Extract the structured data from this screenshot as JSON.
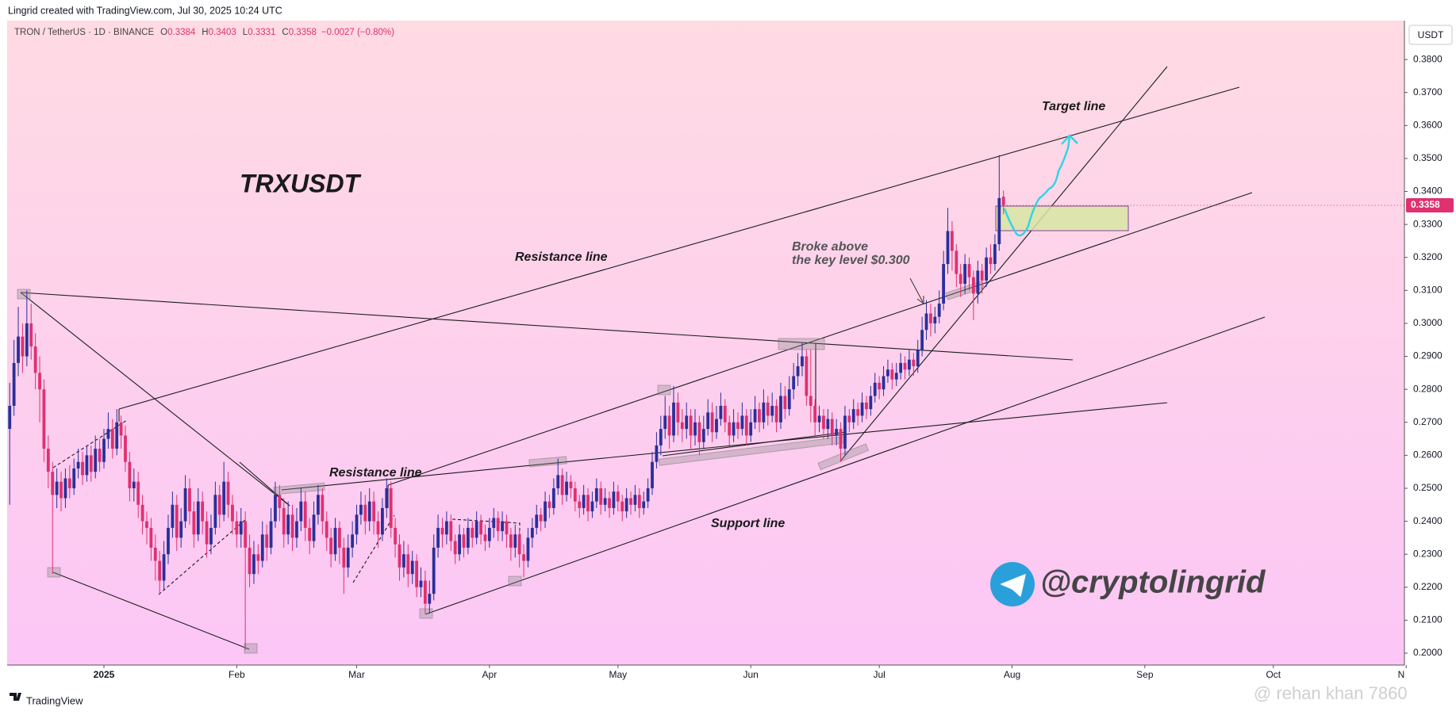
{
  "header": "Lingrid created with TradingView.com, Jul 30, 2025 10:24 UTC",
  "footer": "TradingView",
  "watermark": "@ rehan khan 7860",
  "chart_data": {
    "type": "candlestick",
    "legend": {
      "symbol": "TRON / TetherUS · 1D · BINANCE",
      "fields": [
        "O",
        "H",
        "L",
        "C"
      ],
      "change": "−0.0027 (−0.80%)"
    },
    "currency": "USDT",
    "up_color": "#2a2f9a",
    "down_color": "#e0306f",
    "open": [
      0.268,
      0.275,
      0.288,
      0.296,
      0.29,
      0.3,
      0.293,
      0.285,
      0.28,
      0.262,
      0.255,
      0.248,
      0.252,
      0.247,
      0.253,
      0.25,
      0.256,
      0.258,
      0.254,
      0.26,
      0.255,
      0.262,
      0.258,
      0.265,
      0.268,
      0.262,
      0.27,
      0.266,
      0.258,
      0.25,
      0.252,
      0.245,
      0.24,
      0.238,
      0.232,
      0.228,
      0.222,
      0.23,
      0.238,
      0.245,
      0.235,
      0.24,
      0.25,
      0.243,
      0.236,
      0.246,
      0.24,
      0.233,
      0.238,
      0.248,
      0.242,
      0.252,
      0.245,
      0.24,
      0.236,
      0.24,
      0.232,
      0.224,
      0.23,
      0.228,
      0.236,
      0.232,
      0.24,
      0.248,
      0.244,
      0.236,
      0.242,
      0.235,
      0.24,
      0.246,
      0.238,
      0.234,
      0.242,
      0.248,
      0.24,
      0.235,
      0.23,
      0.238,
      0.232,
      0.226,
      0.232,
      0.236,
      0.242,
      0.245,
      0.24,
      0.246,
      0.24,
      0.236,
      0.244,
      0.25,
      0.238,
      0.233,
      0.226,
      0.23,
      0.224,
      0.228,
      0.22,
      0.222,
      0.215,
      0.218,
      0.232,
      0.238,
      0.236,
      0.24,
      0.234,
      0.23,
      0.236,
      0.232,
      0.238,
      0.235,
      0.24,
      0.236,
      0.234,
      0.238,
      0.241,
      0.237,
      0.24,
      0.236,
      0.232,
      0.236,
      0.23,
      0.228,
      0.235,
      0.238,
      0.242,
      0.24,
      0.246,
      0.244,
      0.25,
      0.254,
      0.248,
      0.252,
      0.25,
      0.246,
      0.244,
      0.248,
      0.243,
      0.246,
      0.25,
      0.245,
      0.247,
      0.244,
      0.249,
      0.246,
      0.243,
      0.247,
      0.245,
      0.248,
      0.244,
      0.246,
      0.25,
      0.258,
      0.263,
      0.268,
      0.272,
      0.266,
      0.276,
      0.27,
      0.268,
      0.272,
      0.266,
      0.27,
      0.264,
      0.268,
      0.273,
      0.267,
      0.271,
      0.275,
      0.27,
      0.266,
      0.27,
      0.268,
      0.272,
      0.266,
      0.27,
      0.274,
      0.27,
      0.276,
      0.272,
      0.275,
      0.27,
      0.278,
      0.274,
      0.28,
      0.284,
      0.287,
      0.29,
      0.278,
      0.275,
      0.27,
      0.272,
      0.268,
      0.271,
      0.266,
      0.268,
      0.262,
      0.272,
      0.27,
      0.274,
      0.272,
      0.276,
      0.274,
      0.278,
      0.282,
      0.28,
      0.284,
      0.286,
      0.283,
      0.285,
      0.288,
      0.286,
      0.289,
      0.287,
      0.292,
      0.298,
      0.303,
      0.3,
      0.302,
      0.306,
      0.318,
      0.328,
      0.322,
      0.315,
      0.312,
      0.318,
      0.314,
      0.309,
      0.316,
      0.313,
      0.32,
      0.318,
      0.324,
      0.3384
    ],
    "high": [
      0.282,
      0.295,
      0.305,
      0.3,
      0.31,
      0.306,
      0.297,
      0.29,
      0.283,
      0.266,
      0.258,
      0.256,
      0.255,
      0.256,
      0.257,
      0.259,
      0.262,
      0.261,
      0.263,
      0.263,
      0.266,
      0.265,
      0.268,
      0.273,
      0.271,
      0.274,
      0.272,
      0.269,
      0.261,
      0.256,
      0.255,
      0.248,
      0.243,
      0.241,
      0.236,
      0.231,
      0.234,
      0.242,
      0.249,
      0.248,
      0.244,
      0.254,
      0.253,
      0.246,
      0.25,
      0.249,
      0.243,
      0.242,
      0.252,
      0.251,
      0.258,
      0.255,
      0.248,
      0.243,
      0.244,
      0.243,
      0.236,
      0.234,
      0.233,
      0.24,
      0.239,
      0.244,
      0.252,
      0.251,
      0.247,
      0.246,
      0.245,
      0.244,
      0.25,
      0.249,
      0.241,
      0.246,
      0.251,
      0.25,
      0.243,
      0.238,
      0.241,
      0.24,
      0.235,
      0.236,
      0.24,
      0.245,
      0.249,
      0.248,
      0.25,
      0.249,
      0.243,
      0.247,
      0.253,
      0.252,
      0.241,
      0.236,
      0.234,
      0.233,
      0.231,
      0.23,
      0.226,
      0.225,
      0.222,
      0.236,
      0.242,
      0.241,
      0.243,
      0.242,
      0.236,
      0.239,
      0.238,
      0.241,
      0.24,
      0.243,
      0.242,
      0.239,
      0.241,
      0.244,
      0.243,
      0.243,
      0.242,
      0.238,
      0.239,
      0.238,
      0.233,
      0.238,
      0.241,
      0.245,
      0.244,
      0.249,
      0.248,
      0.253,
      0.259,
      0.256,
      0.255,
      0.254,
      0.252,
      0.248,
      0.251,
      0.25,
      0.249,
      0.253,
      0.252,
      0.25,
      0.249,
      0.252,
      0.251,
      0.248,
      0.25,
      0.249,
      0.251,
      0.25,
      0.249,
      0.253,
      0.261,
      0.267,
      0.272,
      0.278,
      0.275,
      0.281,
      0.279,
      0.274,
      0.276,
      0.274,
      0.274,
      0.272,
      0.272,
      0.277,
      0.276,
      0.275,
      0.279,
      0.277,
      0.272,
      0.274,
      0.273,
      0.276,
      0.274,
      0.274,
      0.278,
      0.276,
      0.28,
      0.278,
      0.279,
      0.277,
      0.282,
      0.281,
      0.284,
      0.288,
      0.291,
      0.294,
      0.292,
      0.292,
      0.277,
      0.275,
      0.274,
      0.274,
      0.273,
      0.271,
      0.27,
      0.275,
      0.274,
      0.277,
      0.276,
      0.279,
      0.278,
      0.281,
      0.285,
      0.284,
      0.287,
      0.289,
      0.288,
      0.288,
      0.291,
      0.29,
      0.292,
      0.291,
      0.295,
      0.302,
      0.307,
      0.306,
      0.305,
      0.31,
      0.322,
      0.335,
      0.331,
      0.324,
      0.318,
      0.321,
      0.32,
      0.316,
      0.319,
      0.318,
      0.323,
      0.324,
      0.327,
      0.351,
      0.3403
    ],
    "low": [
      0.245,
      0.272,
      0.284,
      0.285,
      0.287,
      0.289,
      0.28,
      0.27,
      0.258,
      0.25,
      0.224,
      0.244,
      0.243,
      0.244,
      0.247,
      0.248,
      0.253,
      0.251,
      0.252,
      0.252,
      0.253,
      0.255,
      0.256,
      0.262,
      0.259,
      0.26,
      0.262,
      0.255,
      0.246,
      0.246,
      0.241,
      0.236,
      0.233,
      0.228,
      0.222,
      0.218,
      0.219,
      0.227,
      0.235,
      0.231,
      0.232,
      0.238,
      0.239,
      0.232,
      0.234,
      0.236,
      0.229,
      0.23,
      0.236,
      0.238,
      0.24,
      0.241,
      0.236,
      0.232,
      0.232,
      0.201,
      0.22,
      0.221,
      0.224,
      0.226,
      0.228,
      0.23,
      0.238,
      0.24,
      0.232,
      0.233,
      0.231,
      0.232,
      0.237,
      0.234,
      0.23,
      0.232,
      0.239,
      0.236,
      0.231,
      0.226,
      0.228,
      0.227,
      0.218,
      0.223,
      0.229,
      0.233,
      0.239,
      0.236,
      0.237,
      0.236,
      0.232,
      0.234,
      0.241,
      0.235,
      0.229,
      0.222,
      0.223,
      0.22,
      0.221,
      0.217,
      0.217,
      0.212,
      0.212,
      0.216,
      0.229,
      0.232,
      0.233,
      0.231,
      0.227,
      0.228,
      0.229,
      0.23,
      0.232,
      0.233,
      0.233,
      0.231,
      0.232,
      0.235,
      0.234,
      0.234,
      0.232,
      0.228,
      0.229,
      0.226,
      0.223,
      0.226,
      0.232,
      0.236,
      0.237,
      0.238,
      0.241,
      0.242,
      0.248,
      0.245,
      0.246,
      0.247,
      0.243,
      0.241,
      0.242,
      0.24,
      0.241,
      0.244,
      0.242,
      0.243,
      0.241,
      0.242,
      0.243,
      0.24,
      0.241,
      0.242,
      0.243,
      0.241,
      0.242,
      0.244,
      0.248,
      0.256,
      0.26,
      0.265,
      0.262,
      0.264,
      0.266,
      0.264,
      0.265,
      0.262,
      0.263,
      0.26,
      0.262,
      0.266,
      0.264,
      0.265,
      0.269,
      0.267,
      0.263,
      0.264,
      0.265,
      0.266,
      0.263,
      0.264,
      0.268,
      0.267,
      0.268,
      0.269,
      0.27,
      0.267,
      0.268,
      0.271,
      0.272,
      0.277,
      0.281,
      0.284,
      0.275,
      0.27,
      0.266,
      0.267,
      0.265,
      0.265,
      0.263,
      0.263,
      0.258,
      0.26,
      0.267,
      0.268,
      0.269,
      0.27,
      0.271,
      0.272,
      0.276,
      0.277,
      0.278,
      0.282,
      0.28,
      0.281,
      0.283,
      0.283,
      0.284,
      0.284,
      0.285,
      0.29,
      0.295,
      0.296,
      0.297,
      0.3,
      0.304,
      0.315,
      0.316,
      0.311,
      0.308,
      0.309,
      0.31,
      0.301,
      0.306,
      0.309,
      0.311,
      0.315,
      0.316,
      0.322,
      0.3331
    ],
    "close": [
      0.275,
      0.288,
      0.296,
      0.29,
      0.3,
      0.293,
      0.285,
      0.28,
      0.262,
      0.255,
      0.248,
      0.252,
      0.247,
      0.253,
      0.25,
      0.256,
      0.258,
      0.254,
      0.26,
      0.255,
      0.262,
      0.258,
      0.265,
      0.268,
      0.262,
      0.27,
      0.266,
      0.258,
      0.25,
      0.252,
      0.245,
      0.24,
      0.238,
      0.232,
      0.228,
      0.222,
      0.23,
      0.238,
      0.245,
      0.235,
      0.24,
      0.25,
      0.243,
      0.236,
      0.246,
      0.24,
      0.233,
      0.238,
      0.248,
      0.242,
      0.252,
      0.245,
      0.24,
      0.236,
      0.24,
      0.232,
      0.224,
      0.23,
      0.228,
      0.236,
      0.232,
      0.24,
      0.248,
      0.244,
      0.236,
      0.242,
      0.235,
      0.24,
      0.246,
      0.238,
      0.234,
      0.242,
      0.248,
      0.24,
      0.235,
      0.23,
      0.238,
      0.232,
      0.226,
      0.232,
      0.236,
      0.242,
      0.245,
      0.24,
      0.246,
      0.24,
      0.236,
      0.244,
      0.25,
      0.238,
      0.233,
      0.226,
      0.23,
      0.224,
      0.228,
      0.22,
      0.222,
      0.215,
      0.218,
      0.232,
      0.238,
      0.236,
      0.24,
      0.234,
      0.23,
      0.236,
      0.232,
      0.238,
      0.235,
      0.24,
      0.236,
      0.234,
      0.238,
      0.241,
      0.237,
      0.24,
      0.236,
      0.232,
      0.236,
      0.23,
      0.228,
      0.235,
      0.238,
      0.242,
      0.24,
      0.246,
      0.244,
      0.25,
      0.254,
      0.248,
      0.252,
      0.25,
      0.246,
      0.244,
      0.248,
      0.243,
      0.246,
      0.25,
      0.245,
      0.247,
      0.244,
      0.249,
      0.246,
      0.243,
      0.247,
      0.245,
      0.248,
      0.244,
      0.246,
      0.25,
      0.258,
      0.263,
      0.268,
      0.272,
      0.266,
      0.276,
      0.27,
      0.268,
      0.272,
      0.266,
      0.27,
      0.264,
      0.268,
      0.273,
      0.267,
      0.271,
      0.275,
      0.27,
      0.266,
      0.27,
      0.268,
      0.272,
      0.266,
      0.27,
      0.274,
      0.27,
      0.276,
      0.272,
      0.275,
      0.27,
      0.278,
      0.274,
      0.28,
      0.284,
      0.287,
      0.29,
      0.278,
      0.275,
      0.27,
      0.272,
      0.268,
      0.271,
      0.266,
      0.268,
      0.262,
      0.272,
      0.27,
      0.274,
      0.272,
      0.276,
      0.274,
      0.278,
      0.282,
      0.28,
      0.284,
      0.286,
      0.283,
      0.285,
      0.288,
      0.286,
      0.289,
      0.287,
      0.292,
      0.298,
      0.303,
      0.3,
      0.302,
      0.306,
      0.318,
      0.328,
      0.322,
      0.315,
      0.312,
      0.318,
      0.314,
      0.309,
      0.316,
      0.313,
      0.32,
      0.318,
      0.324,
      0.338,
      0.3358
    ],
    "xlim": [
      -0.6,
      325.6
    ],
    "xticks": [
      {
        "value": 22,
        "label": "2025"
      },
      {
        "value": 53,
        "label": "Feb"
      },
      {
        "value": 81,
        "label": "Mar"
      },
      {
        "value": 112,
        "label": "Apr"
      },
      {
        "value": 142,
        "label": "May"
      },
      {
        "value": 173,
        "label": "Jun"
      },
      {
        "value": 203,
        "label": "Jul"
      },
      {
        "value": 234,
        "label": "Aug"
      },
      {
        "value": 265,
        "label": "Sep"
      },
      {
        "value": 295,
        "label": "Oct"
      },
      {
        "value": 326,
        "label": "N"
      }
    ],
    "ylim": [
      0.1964,
      0.3918
    ],
    "yticks": [
      {
        "value": 0.2,
        "label": "0.2000"
      },
      {
        "value": 0.21,
        "label": "0.2100"
      },
      {
        "value": 0.22,
        "label": "0.2200"
      },
      {
        "value": 0.23,
        "label": "0.2300"
      },
      {
        "value": 0.24,
        "label": "0.2400"
      },
      {
        "value": 0.25,
        "label": "0.2500"
      },
      {
        "value": 0.26,
        "label": "0.2600"
      },
      {
        "value": 0.27,
        "label": "0.2700"
      },
      {
        "value": 0.28,
        "label": "0.2800"
      },
      {
        "value": 0.29,
        "label": "0.2900"
      },
      {
        "value": 0.3,
        "label": "0.3000"
      },
      {
        "value": 0.31,
        "label": "0.3100"
      },
      {
        "value": 0.32,
        "label": "0.3200"
      },
      {
        "value": 0.33,
        "label": "0.3300"
      },
      {
        "value": 0.34,
        "label": "0.3400"
      },
      {
        "value": 0.35,
        "label": "0.3500"
      },
      {
        "value": 0.36,
        "label": "0.3600"
      },
      {
        "value": 0.37,
        "label": "0.3700"
      },
      {
        "value": 0.38,
        "label": "0.3800"
      }
    ],
    "annotations": {
      "symbol": "TRXUSDT",
      "resistance_upper": "Resistance line",
      "resistance_lower": "Resistance line",
      "target": "Target line",
      "support": "Support line",
      "breakout": [
        "Broke above",
        "the key level $0.300"
      ],
      "channel": "@cryptolingrid"
    }
  }
}
